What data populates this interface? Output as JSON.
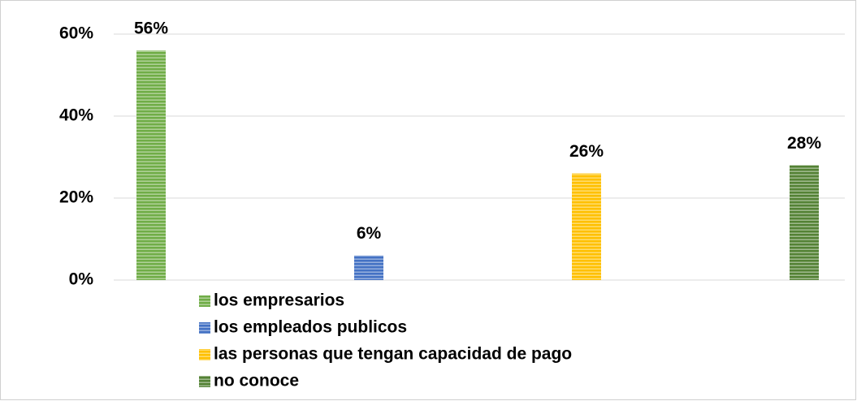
{
  "chart_data": {
    "type": "bar",
    "categories": [
      null
    ],
    "series": [
      {
        "name": "los empresarios",
        "color": "#70ad47",
        "values": [
          56
        ],
        "value_labels": [
          "56%"
        ]
      },
      {
        "name": "los empleados publicos",
        "color": "#4472c4",
        "values": [
          6
        ],
        "value_labels": [
          "6%"
        ]
      },
      {
        "name": "las personas que tengan capacidad de pago",
        "color": "#ffc000",
        "values": [
          26
        ],
        "value_labels": [
          "26%"
        ]
      },
      {
        "name": "no conoce",
        "color": "#548235",
        "values": [
          28
        ],
        "value_labels": [
          "28%"
        ]
      }
    ],
    "ylim": [
      0,
      60
    ],
    "yticks": [
      {
        "value": 0,
        "label": "0%"
      },
      {
        "value": 20,
        "label": "20%"
      },
      {
        "value": 40,
        "label": "40%"
      },
      {
        "value": 60,
        "label": "60%"
      }
    ],
    "grid": true,
    "legend": "bottom-left"
  }
}
